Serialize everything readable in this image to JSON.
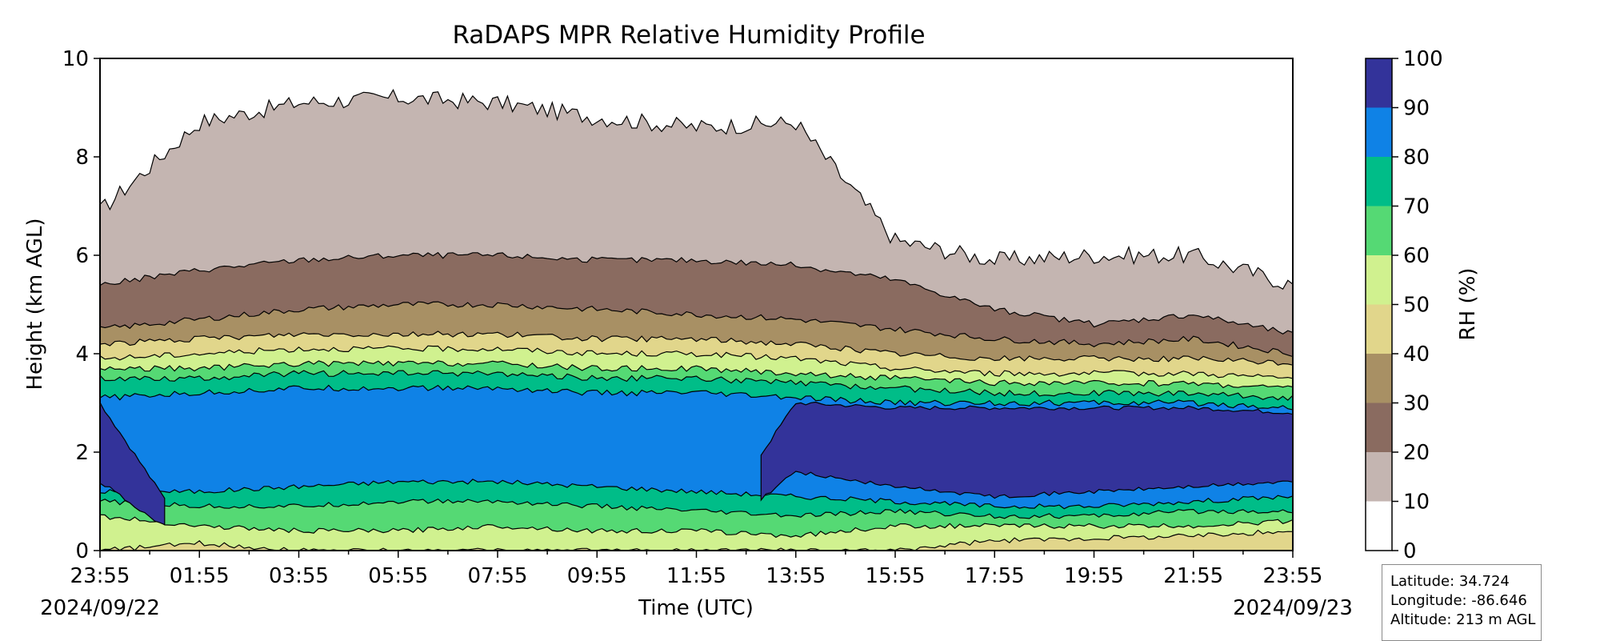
{
  "chart_data": {
    "type": "heatmap",
    "subtype": "filled-contour",
    "title": "RaDAPS MPR Relative Humidity Profile",
    "xlabel": "Time (UTC)",
    "ylabel": "Height (km AGL)",
    "ylim": [
      0,
      10
    ],
    "yticks": [
      "0",
      "2",
      "4",
      "6",
      "8",
      "10"
    ],
    "xlim_hours": [
      0,
      24
    ],
    "xticks": [
      "23:55",
      "01:55",
      "03:55",
      "05:55",
      "07:55",
      "09:55",
      "11:55",
      "13:55",
      "15:55",
      "17:55",
      "19:55",
      "21:55",
      "23:55"
    ],
    "start_date": "2024/09/22",
    "end_date": "2024/09/23",
    "grid": false,
    "colorbar": {
      "label": "RH (%)",
      "ticks": [
        "0",
        "10",
        "20",
        "30",
        "40",
        "50",
        "60",
        "70",
        "80",
        "90",
        "100"
      ],
      "levels": [
        0,
        10,
        20,
        30,
        40,
        50,
        60,
        70,
        80,
        90,
        100
      ],
      "colors": [
        "#ffffff",
        "#c4b5b1",
        "#8a6b60",
        "#a89064",
        "#e1d68b",
        "#d0f18f",
        "#55d974",
        "#00bd88",
        "#0f82e6",
        "#33339a"
      ],
      "placement": "right"
    },
    "approx_layer_boundaries_km": {
      "hours": [
        0,
        2,
        4,
        6,
        8,
        10,
        12,
        14,
        16,
        18,
        20,
        22,
        24
      ],
      "rh_lt_10_top": [
        6.9,
        8.7,
        9.1,
        9.2,
        9.1,
        8.8,
        8.6,
        8.7,
        6.3,
        5.9,
        6.0,
        6.0,
        5.4
      ],
      "rh_lt_20_top": [
        5.4,
        5.7,
        5.9,
        6.0,
        6.0,
        5.9,
        5.9,
        5.8,
        5.5,
        4.9,
        4.6,
        4.8,
        4.4
      ],
      "rh_lt_30_top": [
        4.5,
        4.7,
        4.9,
        5.0,
        5.0,
        4.9,
        4.8,
        4.7,
        4.5,
        4.3,
        4.2,
        4.3,
        4.0
      ],
      "rh_lt_40_top": [
        4.2,
        4.3,
        4.4,
        4.4,
        4.4,
        4.3,
        4.3,
        4.2,
        4.0,
        3.9,
        3.9,
        3.9,
        3.8
      ],
      "rh_lt_50_top": [
        3.9,
        4.0,
        4.1,
        4.1,
        4.1,
        4.0,
        4.0,
        3.9,
        3.7,
        3.6,
        3.6,
        3.6,
        3.5
      ],
      "rh_lt_60_top": [
        3.7,
        3.7,
        3.8,
        3.8,
        3.8,
        3.7,
        3.7,
        3.6,
        3.5,
        3.4,
        3.4,
        3.4,
        3.3
      ],
      "rh_lt_70_top": [
        3.5,
        3.5,
        3.6,
        3.6,
        3.6,
        3.5,
        3.5,
        3.4,
        3.3,
        3.2,
        3.2,
        3.2,
        3.1
      ],
      "rh_lt_80_top": [
        3.1,
        3.2,
        3.3,
        3.3,
        3.3,
        3.2,
        3.2,
        3.1,
        3.0,
        3.0,
        3.0,
        3.0,
        2.9
      ],
      "rh_90_band_top": [
        3.0,
        0,
        0,
        0,
        0,
        0,
        0,
        3.0,
        2.9,
        2.9,
        2.9,
        2.9,
        2.8
      ],
      "rh_90_band_bottom": [
        1.4,
        0,
        0,
        0,
        0,
        0,
        0,
        1.6,
        1.3,
        1.1,
        1.2,
        1.3,
        1.4
      ],
      "rh_80_bottom": [
        1.2,
        1.2,
        1.3,
        1.4,
        1.4,
        1.3,
        1.2,
        1.1,
        1.0,
        0.9,
        0.9,
        1.0,
        1.1
      ],
      "rh_70_bottom": [
        1.0,
        0.9,
        0.9,
        1.0,
        1.0,
        0.9,
        0.8,
        0.7,
        0.8,
        0.7,
        0.7,
        0.8,
        0.8
      ],
      "rh_60_bottom": [
        0.7,
        0.5,
        0.4,
        0.4,
        0.5,
        0.4,
        0.4,
        0.3,
        0.5,
        0.5,
        0.5,
        0.5,
        0.6
      ],
      "rh_50_bottom": [
        0.0,
        0.15,
        0.0,
        0.0,
        0.0,
        0.0,
        0.0,
        0.0,
        0.0,
        0.2,
        0.25,
        0.3,
        0.4
      ]
    }
  },
  "info": {
    "latitude": "Latitude: 34.724",
    "longitude": "Longitude: -86.646",
    "altitude": "Altitude: 213 m AGL"
  }
}
